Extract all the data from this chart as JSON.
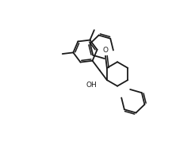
{
  "bg_color": "#ffffff",
  "line_color": "#1a1a1a",
  "line_width": 1.3,
  "figsize": [
    2.46,
    1.87
  ],
  "dpi": 100
}
